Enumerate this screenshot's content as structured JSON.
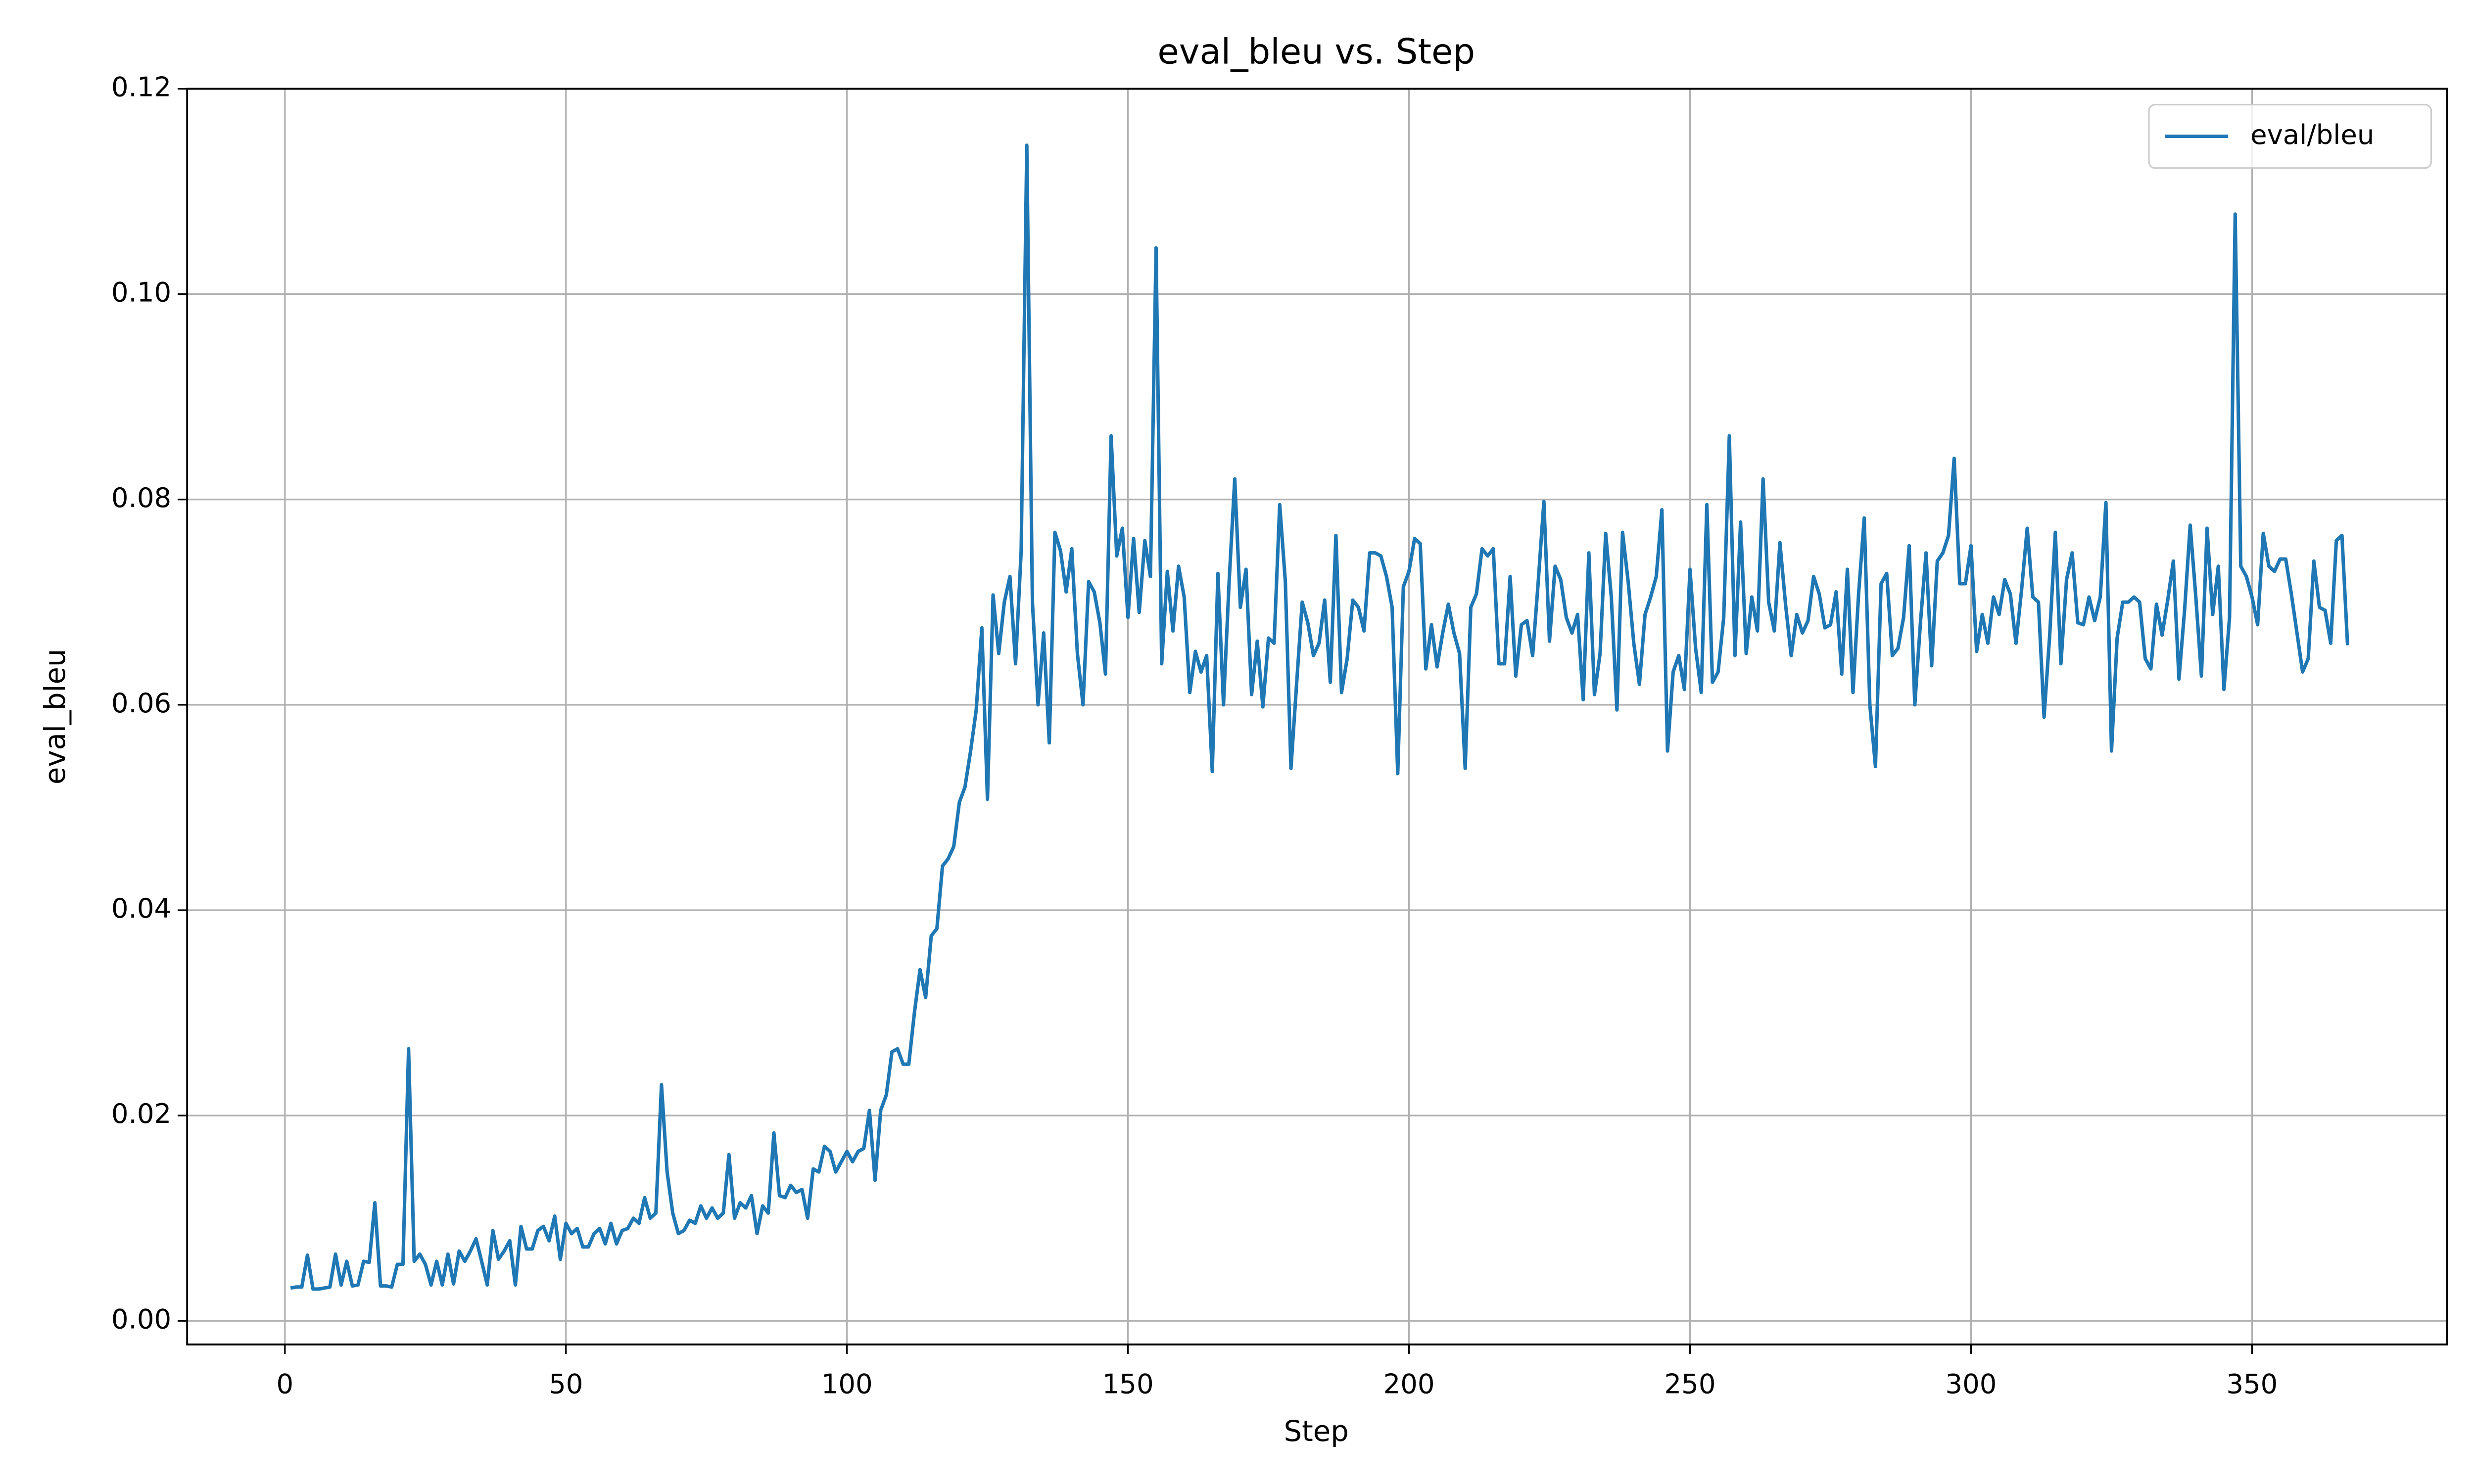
{
  "chart_data": {
    "type": "line",
    "title": "eval_bleu vs. Step",
    "x_label": "Step",
    "y_label": "eval_bleu",
    "x": [
      1,
      2,
      3,
      4,
      5,
      6,
      7,
      8,
      9,
      10,
      11,
      12,
      13,
      14,
      15,
      16,
      17,
      18,
      19,
      20,
      21,
      22,
      23,
      24,
      25,
      26,
      27,
      28,
      29,
      30,
      31,
      32,
      33,
      34,
      35,
      36,
      37,
      38,
      39,
      40,
      41,
      42,
      43,
      44,
      45,
      46,
      47,
      48,
      49,
      50,
      51,
      52,
      53,
      54,
      55,
      56,
      57,
      58,
      59,
      60,
      61,
      62,
      63,
      64,
      65,
      66,
      67,
      68,
      69,
      70,
      71,
      72,
      73,
      74,
      75,
      76,
      77,
      78,
      79,
      80,
      81,
      82,
      83,
      84,
      85,
      86,
      87,
      88,
      89,
      90,
      91,
      92,
      93,
      94,
      95,
      96,
      97,
      98,
      99,
      100,
      101,
      102,
      103,
      104,
      105,
      106,
      107,
      108,
      109,
      110,
      111,
      112,
      113,
      114,
      115,
      116,
      117,
      118,
      119,
      120,
      121,
      122,
      123,
      124,
      125,
      126,
      127,
      128,
      129,
      130,
      131,
      132,
      133,
      134,
      135,
      136,
      137,
      138,
      139,
      140,
      141,
      142,
      143,
      144,
      145,
      146,
      147,
      148,
      149,
      150,
      151,
      152,
      153,
      154,
      155,
      156,
      157,
      158,
      159,
      160,
      161,
      162,
      163,
      164,
      165,
      166,
      167,
      168,
      169,
      170,
      171,
      172,
      173,
      174,
      175,
      176,
      177,
      178,
      179,
      180,
      181,
      182,
      183,
      184,
      185,
      186,
      187,
      188,
      189,
      190,
      191,
      192,
      193,
      194,
      195,
      196,
      197,
      198,
      199,
      200,
      201,
      202,
      203,
      204,
      205,
      206,
      207,
      208,
      209,
      210,
      211,
      212,
      213,
      214,
      215,
      216,
      217,
      218,
      219,
      220,
      221,
      222,
      223,
      224,
      225,
      226,
      227,
      228,
      229,
      230,
      231,
      232,
      233,
      234,
      235,
      236,
      237,
      238,
      239,
      240,
      241,
      242,
      243,
      244,
      245,
      246,
      247,
      248,
      249,
      250,
      251,
      252,
      253,
      254,
      255,
      256,
      257,
      258,
      259,
      260,
      261,
      262,
      263,
      264,
      265,
      266,
      267,
      268,
      269,
      270,
      271,
      272,
      273,
      274,
      275,
      276,
      277,
      278,
      279,
      280,
      281,
      282,
      283,
      284,
      285,
      286,
      287,
      288,
      289,
      290,
      291,
      292,
      293,
      294,
      295,
      296,
      297,
      298,
      299,
      300,
      301,
      302,
      303,
      304,
      305,
      306,
      307,
      308,
      309,
      310,
      311,
      312,
      313,
      314,
      315,
      316,
      317,
      318,
      319,
      320,
      321,
      322,
      323,
      324,
      325,
      326,
      327,
      328,
      329,
      330,
      331,
      332,
      333,
      334,
      335,
      336,
      337,
      338,
      339,
      340,
      341,
      342,
      343,
      344,
      345,
      346,
      347,
      348,
      349,
      350,
      351,
      352,
      353,
      354,
      355,
      356,
      357,
      358,
      359,
      360,
      361,
      362,
      363,
      364,
      365,
      366,
      367
    ],
    "series": [
      {
        "name": "eval/bleu",
        "color": "#1f77b4",
        "values": [
          0.0032,
          0.0033,
          0.0033,
          0.0064,
          0.0031,
          0.0031,
          0.0032,
          0.0033,
          0.0065,
          0.0035,
          0.0058,
          0.0034,
          0.0035,
          0.0058,
          0.0057,
          0.0115,
          0.0034,
          0.0034,
          0.0033,
          0.0055,
          0.0055,
          0.0265,
          0.0058,
          0.0065,
          0.0055,
          0.0035,
          0.0058,
          0.0035,
          0.0065,
          0.0036,
          0.0068,
          0.0058,
          0.0068,
          0.008,
          0.0058,
          0.0035,
          0.0088,
          0.006,
          0.0068,
          0.0078,
          0.0035,
          0.0092,
          0.007,
          0.007,
          0.0088,
          0.0092,
          0.0078,
          0.0102,
          0.006,
          0.0095,
          0.0085,
          0.009,
          0.0072,
          0.0072,
          0.0085,
          0.009,
          0.0075,
          0.0095,
          0.0075,
          0.0088,
          0.009,
          0.01,
          0.0095,
          0.012,
          0.01,
          0.0105,
          0.023,
          0.0145,
          0.0105,
          0.0085,
          0.0088,
          0.0098,
          0.0095,
          0.0112,
          0.01,
          0.011,
          0.01,
          0.0105,
          0.0162,
          0.01,
          0.0115,
          0.011,
          0.0122,
          0.0085,
          0.0112,
          0.0105,
          0.0183,
          0.0122,
          0.012,
          0.0132,
          0.0125,
          0.0128,
          0.01,
          0.0148,
          0.0145,
          0.017,
          0.0165,
          0.0145,
          0.0155,
          0.0165,
          0.0155,
          0.0165,
          0.0168,
          0.0205,
          0.0137,
          0.0205,
          0.022,
          0.0262,
          0.0265,
          0.025,
          0.025,
          0.03,
          0.0342,
          0.0315,
          0.0375,
          0.0382,
          0.0443,
          0.045,
          0.0462,
          0.0505,
          0.052,
          0.0555,
          0.0595,
          0.0675,
          0.0508,
          0.0707,
          0.065,
          0.07,
          0.0725,
          0.064,
          0.075,
          0.1145,
          0.07,
          0.06,
          0.067,
          0.0563,
          0.0768,
          0.075,
          0.071,
          0.0752,
          0.065,
          0.06,
          0.072,
          0.071,
          0.068,
          0.063,
          0.0862,
          0.0745,
          0.0772,
          0.0685,
          0.0762,
          0.069,
          0.076,
          0.0725,
          0.1045,
          0.064,
          0.073,
          0.0672,
          0.0735,
          0.0705,
          0.0612,
          0.0652,
          0.0632,
          0.0648,
          0.0535,
          0.0728,
          0.06,
          0.072,
          0.082,
          0.0695,
          0.0732,
          0.061,
          0.0662,
          0.0598,
          0.0665,
          0.066,
          0.0795,
          0.072,
          0.0538,
          0.062,
          0.07,
          0.068,
          0.0648,
          0.066,
          0.0702,
          0.0622,
          0.0765,
          0.0612,
          0.0645,
          0.0702,
          0.0695,
          0.0672,
          0.0748,
          0.0748,
          0.0745,
          0.0725,
          0.0695,
          0.0533,
          0.0715,
          0.073,
          0.0762,
          0.0757,
          0.0635,
          0.0678,
          0.0637,
          0.067,
          0.0698,
          0.067,
          0.065,
          0.0538,
          0.0695,
          0.0708,
          0.0752,
          0.0745,
          0.0752,
          0.064,
          0.064,
          0.0725,
          0.0628,
          0.0678,
          0.0682,
          0.0648,
          0.072,
          0.0798,
          0.0662,
          0.0735,
          0.0722,
          0.0685,
          0.067,
          0.0688,
          0.0605,
          0.0748,
          0.061,
          0.065,
          0.0767,
          0.0705,
          0.0595,
          0.0768,
          0.072,
          0.066,
          0.062,
          0.0688,
          0.0705,
          0.0725,
          0.079,
          0.0555,
          0.0632,
          0.0648,
          0.0615,
          0.0732,
          0.0655,
          0.0612,
          0.0795,
          0.0622,
          0.0632,
          0.0685,
          0.0862,
          0.0648,
          0.0778,
          0.065,
          0.0705,
          0.0672,
          0.082,
          0.07,
          0.0672,
          0.0758,
          0.0698,
          0.0648,
          0.0688,
          0.067,
          0.0682,
          0.0725,
          0.0708,
          0.0675,
          0.0678,
          0.071,
          0.063,
          0.0732,
          0.0612,
          0.0708,
          0.0782,
          0.06,
          0.054,
          0.0718,
          0.0728,
          0.0648,
          0.0655,
          0.0685,
          0.0755,
          0.06,
          0.068,
          0.0748,
          0.0638,
          0.074,
          0.0748,
          0.0765,
          0.084,
          0.0718,
          0.0718,
          0.0755,
          0.0652,
          0.0688,
          0.066,
          0.0705,
          0.0688,
          0.0722,
          0.0708,
          0.066,
          0.0712,
          0.0772,
          0.0705,
          0.07,
          0.0588,
          0.0668,
          0.0768,
          0.064,
          0.0722,
          0.0748,
          0.068,
          0.0678,
          0.0705,
          0.0682,
          0.0705,
          0.0797,
          0.0555,
          0.0665,
          0.07,
          0.07,
          0.0705,
          0.07,
          0.0645,
          0.0635,
          0.0698,
          0.0668,
          0.0702,
          0.074,
          0.0625,
          0.0692,
          0.0775,
          0.0705,
          0.0628,
          0.0772,
          0.0688,
          0.0735,
          0.0615,
          0.0685,
          0.1078,
          0.0735,
          0.0725,
          0.0705,
          0.0678,
          0.0767,
          0.0735,
          0.073,
          0.0742,
          0.0742,
          0.0708,
          0.067,
          0.0632,
          0.0645,
          0.074,
          0.0695,
          0.0692,
          0.066,
          0.076,
          0.0765,
          0.0658
        ]
      }
    ],
    "xlim": [
      -17.4,
      384.7
    ],
    "ylim": [
      -0.0023,
      0.12
    ],
    "xticks": [
      0,
      50,
      100,
      150,
      200,
      250,
      300,
      350
    ],
    "yticks": [
      {
        "value": 0,
        "label": "0.00"
      },
      {
        "value": 0.02,
        "label": "0.02"
      },
      {
        "value": 0.04,
        "label": "0.04"
      },
      {
        "value": 0.06,
        "label": "0.06"
      },
      {
        "value": 0.08,
        "label": "0.08"
      },
      {
        "value": 0.1,
        "label": "0.10"
      },
      {
        "value": 0.12,
        "label": "0.12"
      }
    ],
    "grid": true,
    "legend": "upper right"
  }
}
